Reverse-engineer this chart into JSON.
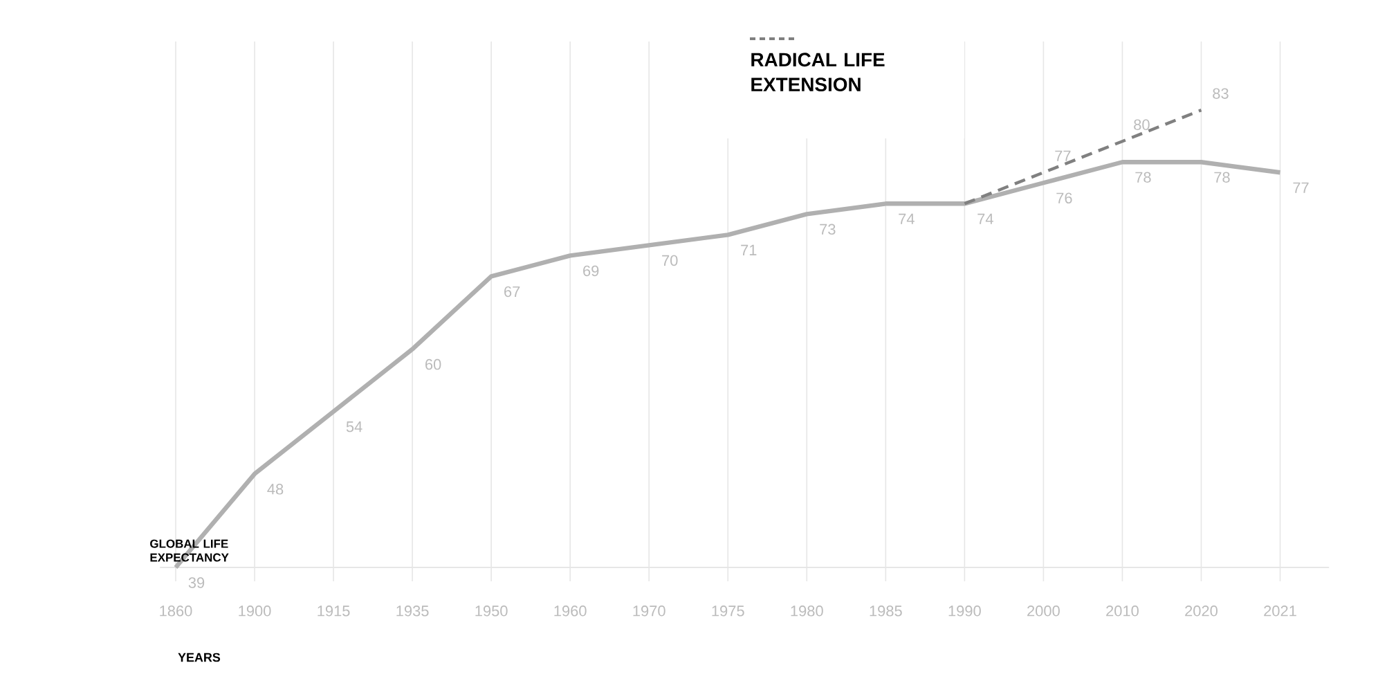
{
  "chart_data": {
    "type": "line",
    "xlabel": "YEARS",
    "ylabel": "GLOBAL LIFE EXPECTANCY",
    "categories": [
      "1860",
      "1900",
      "1915",
      "1935",
      "1950",
      "1960",
      "1970",
      "1975",
      "1980",
      "1985",
      "1990",
      "2000",
      "2010",
      "2020",
      "2021"
    ],
    "series": [
      {
        "color": "#b0b0b0",
        "line_style": "solid",
        "values": [
          39,
          48,
          54,
          60,
          67,
          69,
          70,
          71,
          73,
          74,
          74,
          76,
          78,
          78,
          77
        ],
        "value_labels": [
          "39",
          "48",
          "54",
          "60",
          "67",
          "69",
          "70",
          "71",
          "73",
          "74",
          "74",
          "76",
          "78",
          "78",
          "77"
        ]
      },
      {
        "name": "RADICAL LIFE EXTENSION",
        "color": "#808080",
        "line_style": "dashed",
        "values": [
          null,
          null,
          null,
          null,
          null,
          null,
          null,
          null,
          null,
          null,
          74,
          77,
          80,
          83,
          null
        ],
        "value_labels": [
          null,
          null,
          null,
          null,
          null,
          null,
          null,
          null,
          null,
          null,
          null,
          "77",
          "80",
          "83",
          null
        ]
      }
    ],
    "grid": "x",
    "legend": "top"
  }
}
